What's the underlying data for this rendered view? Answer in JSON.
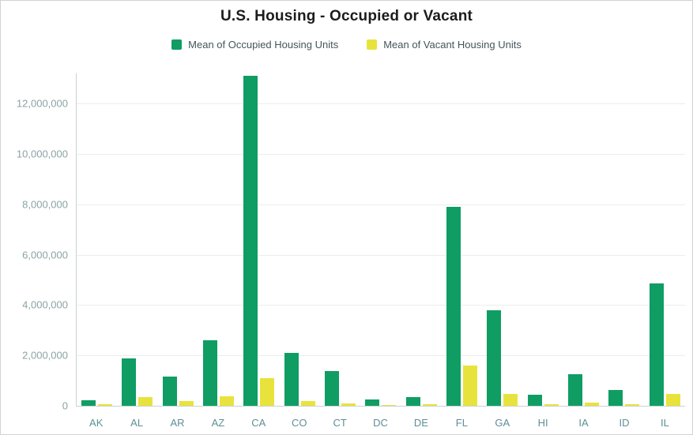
{
  "title": "U.S. Housing - Occupied or Vacant",
  "legend": {
    "items": [
      {
        "label": "Mean of Occupied Housing Units",
        "color": "#0f9d63"
      },
      {
        "label": "Mean of Vacant Housing Units",
        "color": "#e8e33c"
      }
    ]
  },
  "chart_data": {
    "type": "bar",
    "title": "U.S. Housing - Occupied or Vacant",
    "xlabel": "",
    "ylabel": "",
    "grid": true,
    "legend_position": "top",
    "ylim": [
      0,
      13200000
    ],
    "yticks": [
      0,
      2000000,
      4000000,
      6000000,
      8000000,
      10000000,
      12000000
    ],
    "ytick_labels": [
      "0",
      "2,000,000",
      "4,000,000",
      "6,000,000",
      "8,000,000",
      "10,000,000",
      "12,000,000"
    ],
    "categories": [
      "AK",
      "AL",
      "AR",
      "AZ",
      "CA",
      "CO",
      "CT",
      "DC",
      "DE",
      "FL",
      "GA",
      "HI",
      "IA",
      "ID",
      "IL"
    ],
    "series": [
      {
        "name": "Mean of Occupied Housing Units",
        "key": "occupied",
        "color": "#0f9d63",
        "values": [
          220000,
          1870000,
          1150000,
          2600000,
          13100000,
          2100000,
          1370000,
          250000,
          340000,
          7900000,
          3800000,
          450000,
          1250000,
          620000,
          4850000
        ]
      },
      {
        "name": "Mean of Vacant Housing Units",
        "key": "vacant",
        "color": "#e8e33c",
        "values": [
          60000,
          350000,
          200000,
          380000,
          1100000,
          200000,
          100000,
          30000,
          60000,
          1600000,
          470000,
          60000,
          130000,
          60000,
          470000
        ]
      }
    ]
  }
}
